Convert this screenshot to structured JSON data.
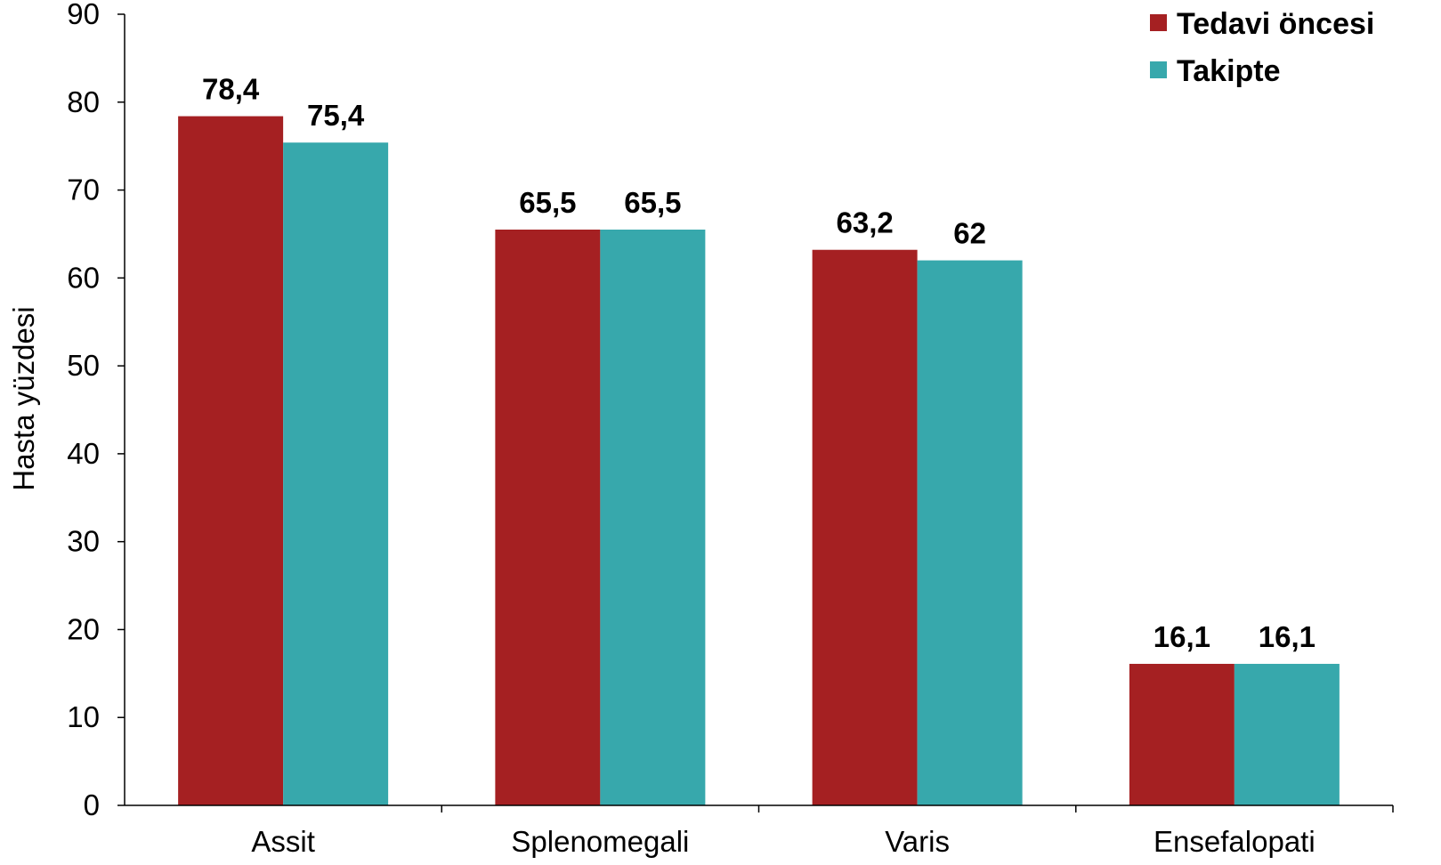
{
  "chart_data": {
    "type": "bar",
    "categories": [
      "Assit",
      "Splenomegali",
      "Varis",
      "Ensefalopati"
    ],
    "series": [
      {
        "name": "Tedavi öncesi",
        "values": [
          78.4,
          65.5,
          63.2,
          16.1
        ],
        "labels": [
          "78,4",
          "65,5",
          "63,2",
          "16,1"
        ],
        "color": "#a52022"
      },
      {
        "name": "Takipte",
        "values": [
          75.4,
          65.5,
          62,
          16.1
        ],
        "labels": [
          "75,4",
          "65,5",
          "62",
          "16,1"
        ],
        "color": "#37a8ac"
      }
    ],
    "ylabel": "Hasta yüzdesi",
    "xlabel": "",
    "ylim": [
      0,
      90
    ],
    "yticks": [
      0,
      10,
      20,
      30,
      40,
      50,
      60,
      70,
      80,
      90
    ],
    "grid": false,
    "legend_position": "top-right"
  }
}
